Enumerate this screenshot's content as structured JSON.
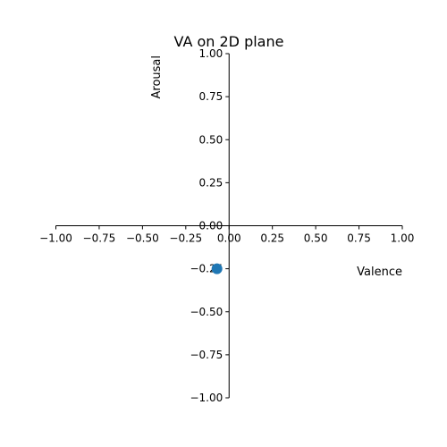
{
  "chart_data": {
    "type": "scatter",
    "title": "VA on 2D plane",
    "xlabel": "Valence",
    "ylabel": "Arousal",
    "xlim": [
      -1.0,
      1.0
    ],
    "ylim": [
      -1.0,
      1.0
    ],
    "xticks": [
      "−1.00",
      "−0.75",
      "−0.50",
      "−0.25",
      "0.00",
      "0.25",
      "0.50",
      "0.75",
      "1.00"
    ],
    "xtick_values": [
      -1.0,
      -0.75,
      -0.5,
      -0.25,
      0.0,
      0.25,
      0.5,
      0.75,
      1.0
    ],
    "yticks": [
      "1.00",
      "0.75",
      "0.50",
      "0.25",
      "0.00",
      "−0.25",
      "−0.50",
      "−0.75",
      "−1.00"
    ],
    "ytick_values": [
      1.0,
      0.75,
      0.5,
      0.25,
      0.0,
      -0.25,
      -0.5,
      -0.75,
      -1.0
    ],
    "grid": false,
    "spines": "centered",
    "points": [
      {
        "x": -0.07,
        "y": -0.25
      }
    ],
    "point_color": "#1f77b4",
    "axis_color": "#000000"
  }
}
